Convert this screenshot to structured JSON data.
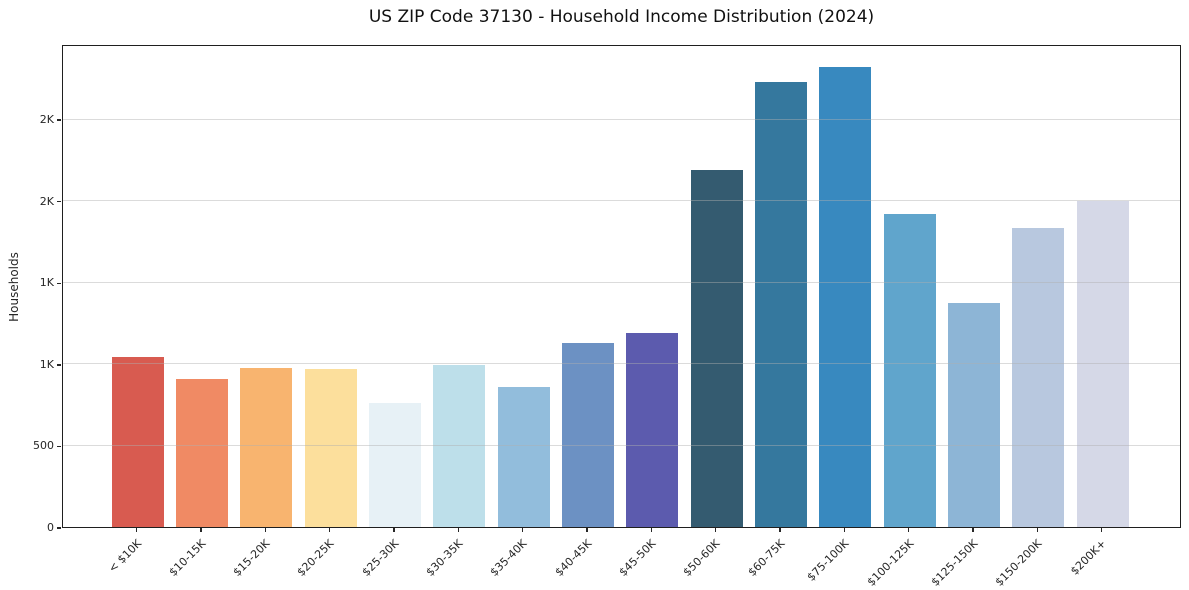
{
  "chart_data": {
    "type": "bar",
    "title": "US ZIP Code 37130 - Household Income Distribution (2024)",
    "xlabel": "",
    "ylabel": "Households",
    "categories": [
      "< $10K",
      "$10-15K",
      "$15-20K",
      "$20-25K",
      "$25-30K",
      "$30-35K",
      "$35-40K",
      "$40-45K",
      "$45-50K",
      "$50-60K",
      "$60-75K",
      "$75-100K",
      "$100-125K",
      "$125-150K",
      "$150-200K",
      "$200K+"
    ],
    "values": [
      1040,
      910,
      975,
      970,
      760,
      990,
      860,
      1130,
      1190,
      2190,
      2730,
      2820,
      1920,
      1370,
      1830,
      2000
    ],
    "bar_colors": [
      "#d85b50",
      "#f08a64",
      "#f8b46f",
      "#fcdf9c",
      "#e7f1f6",
      "#bddfea",
      "#92bddc",
      "#6c91c3",
      "#5c5bae",
      "#345b70",
      "#35789e",
      "#3889bf",
      "#60a5cc",
      "#8db5d6",
      "#b8c8df",
      "#d5d8e7"
    ],
    "ylim": [
      0,
      2960
    ],
    "yticks": [
      {
        "value": 0,
        "label": "0"
      },
      {
        "value": 500,
        "label": "500"
      },
      {
        "value": 1000,
        "label": "1K"
      },
      {
        "value": 1500,
        "label": "1K"
      },
      {
        "value": 2000,
        "label": "2K"
      },
      {
        "value": 2500,
        "label": "2K"
      }
    ],
    "grid": "horizontal",
    "legend": "none"
  },
  "colors": {
    "background": "#ffffff",
    "spine": "#1f1f1f",
    "gridline": "rgba(176,176,176,0.45)",
    "text": "#262626"
  }
}
